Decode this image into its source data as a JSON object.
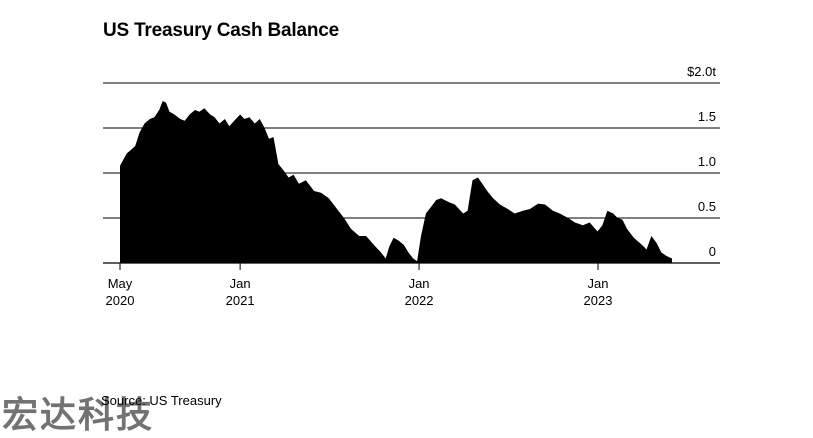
{
  "title": "US Treasury Cash Balance",
  "source": "Source: US Treasury",
  "watermark": "宏达科技",
  "chart_data": {
    "type": "area",
    "title": "US Treasury Cash Balance",
    "xlabel": "",
    "ylabel": "",
    "unit_prefix": "$",
    "unit_suffix": "t",
    "ylim": [
      0,
      2.0
    ],
    "y_ticks": [
      {
        "value": 2.0,
        "label": "$2.0t"
      },
      {
        "value": 1.5,
        "label": "1.5"
      },
      {
        "value": 1.0,
        "label": "1.0"
      },
      {
        "value": 0.5,
        "label": "0.5"
      },
      {
        "value": 0,
        "label": "0"
      }
    ],
    "x_ticks": [
      {
        "date": "2020-05-01",
        "line1": "May",
        "line2": "2020"
      },
      {
        "date": "2021-01-01",
        "line1": "Jan",
        "line2": "2021"
      },
      {
        "date": "2022-01-01",
        "line1": "Jan",
        "line2": "2022"
      },
      {
        "date": "2023-01-01",
        "line1": "Jan",
        "line2": "2023"
      }
    ],
    "xlim": [
      "2020-05-01",
      "2023-09-15"
    ],
    "grid": true,
    "color": "#000000",
    "series": [
      {
        "values": [
          [
            "2020-05-01",
            1.08
          ],
          [
            "2020-05-08",
            1.15
          ],
          [
            "2020-05-15",
            1.22
          ],
          [
            "2020-05-22",
            1.25
          ],
          [
            "2020-06-01",
            1.3
          ],
          [
            "2020-06-10",
            1.45
          ],
          [
            "2020-06-20",
            1.55
          ],
          [
            "2020-07-01",
            1.6
          ],
          [
            "2020-07-10",
            1.62
          ],
          [
            "2020-07-20",
            1.7
          ],
          [
            "2020-07-27",
            1.8
          ],
          [
            "2020-08-03",
            1.78
          ],
          [
            "2020-08-10",
            1.68
          ],
          [
            "2020-08-20",
            1.65
          ],
          [
            "2020-09-01",
            1.6
          ],
          [
            "2020-09-10",
            1.58
          ],
          [
            "2020-09-20",
            1.65
          ],
          [
            "2020-10-01",
            1.7
          ],
          [
            "2020-10-10",
            1.68
          ],
          [
            "2020-10-20",
            1.72
          ],
          [
            "2020-11-01",
            1.65
          ],
          [
            "2020-11-10",
            1.62
          ],
          [
            "2020-11-20",
            1.55
          ],
          [
            "2020-12-01",
            1.6
          ],
          [
            "2020-12-10",
            1.52
          ],
          [
            "2020-12-20",
            1.58
          ],
          [
            "2021-01-01",
            1.65
          ],
          [
            "2021-01-10",
            1.6
          ],
          [
            "2021-01-20",
            1.62
          ],
          [
            "2021-01-31",
            1.55
          ],
          [
            "2021-02-10",
            1.6
          ],
          [
            "2021-02-20",
            1.5
          ],
          [
            "2021-03-01",
            1.38
          ],
          [
            "2021-03-10",
            1.4
          ],
          [
            "2021-03-20",
            1.1
          ],
          [
            "2021-04-01",
            1.02
          ],
          [
            "2021-04-10",
            0.95
          ],
          [
            "2021-04-20",
            0.98
          ],
          [
            "2021-05-01",
            0.88
          ],
          [
            "2021-05-15",
            0.92
          ],
          [
            "2021-06-01",
            0.8
          ],
          [
            "2021-06-15",
            0.78
          ],
          [
            "2021-07-01",
            0.72
          ],
          [
            "2021-07-15",
            0.62
          ],
          [
            "2021-08-01",
            0.5
          ],
          [
            "2021-08-15",
            0.38
          ],
          [
            "2021-09-01",
            0.3
          ],
          [
            "2021-09-15",
            0.3
          ],
          [
            "2021-10-01",
            0.2
          ],
          [
            "2021-10-15",
            0.12
          ],
          [
            "2021-10-25",
            0.05
          ],
          [
            "2021-11-01",
            0.18
          ],
          [
            "2021-11-10",
            0.28
          ],
          [
            "2021-11-20",
            0.25
          ],
          [
            "2021-12-01",
            0.2
          ],
          [
            "2021-12-10",
            0.12
          ],
          [
            "2021-12-20",
            0.05
          ],
          [
            "2021-12-28",
            0.02
          ],
          [
            "2022-01-05",
            0.3
          ],
          [
            "2022-01-15",
            0.55
          ],
          [
            "2022-01-25",
            0.62
          ],
          [
            "2022-02-05",
            0.7
          ],
          [
            "2022-02-15",
            0.72
          ],
          [
            "2022-03-01",
            0.68
          ],
          [
            "2022-03-15",
            0.65
          ],
          [
            "2022-04-01",
            0.55
          ],
          [
            "2022-04-10",
            0.58
          ],
          [
            "2022-04-20",
            0.92
          ],
          [
            "2022-05-01",
            0.95
          ],
          [
            "2022-05-10",
            0.88
          ],
          [
            "2022-05-20",
            0.8
          ],
          [
            "2022-06-01",
            0.72
          ],
          [
            "2022-06-15",
            0.65
          ],
          [
            "2022-07-01",
            0.6
          ],
          [
            "2022-07-15",
            0.55
          ],
          [
            "2022-08-01",
            0.58
          ],
          [
            "2022-08-15",
            0.6
          ],
          [
            "2022-09-01",
            0.66
          ],
          [
            "2022-09-15",
            0.65
          ],
          [
            "2022-10-01",
            0.58
          ],
          [
            "2022-10-15",
            0.55
          ],
          [
            "2022-11-01",
            0.5
          ],
          [
            "2022-11-15",
            0.45
          ],
          [
            "2022-12-01",
            0.42
          ],
          [
            "2022-12-15",
            0.45
          ],
          [
            "2022-12-31",
            0.35
          ],
          [
            "2023-01-10",
            0.42
          ],
          [
            "2023-01-20",
            0.58
          ],
          [
            "2023-02-01",
            0.55
          ],
          [
            "2023-02-10",
            0.5
          ],
          [
            "2023-02-20",
            0.48
          ],
          [
            "2023-03-01",
            0.38
          ],
          [
            "2023-03-15",
            0.28
          ],
          [
            "2023-04-01",
            0.2
          ],
          [
            "2023-04-10",
            0.15
          ],
          [
            "2023-04-20",
            0.3
          ],
          [
            "2023-05-01",
            0.22
          ],
          [
            "2023-05-10",
            0.12
          ],
          [
            "2023-05-20",
            0.08
          ],
          [
            "2023-06-01",
            0.05
          ]
        ]
      }
    ]
  }
}
